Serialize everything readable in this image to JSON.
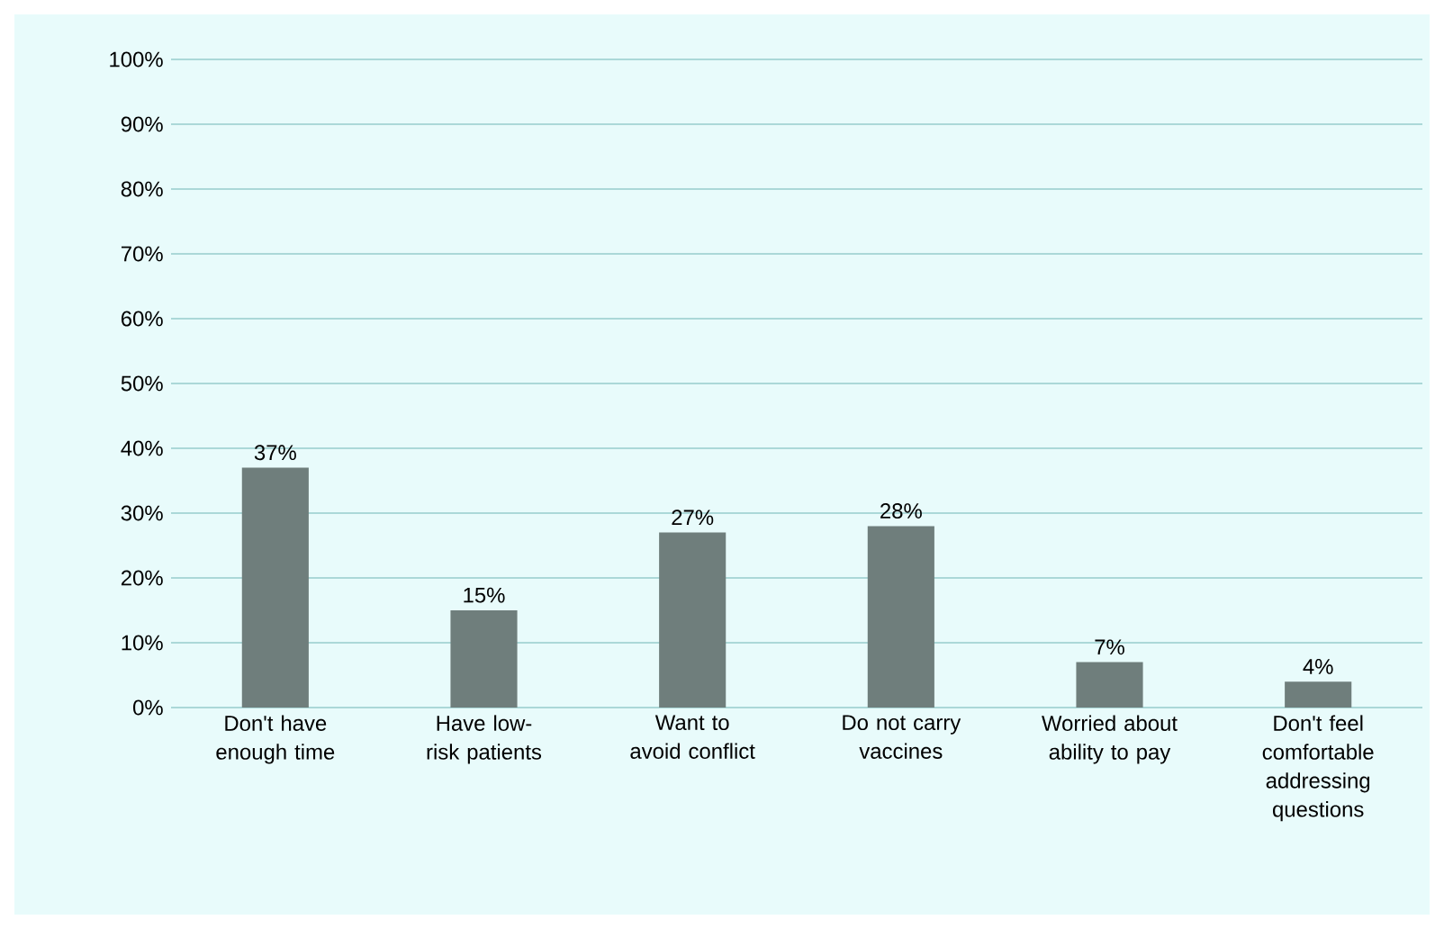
{
  "chart_data": {
    "type": "bar",
    "categories": [
      "Don't have enough time",
      "Have low-risk patients",
      "Want to avoid conflict",
      "Do not carry vaccines",
      "Worried about ability to pay",
      "Don't feel comfortable addressing questions"
    ],
    "values": [
      37,
      15,
      27,
      28,
      7,
      4
    ],
    "value_labels": [
      "37%",
      "15%",
      "27%",
      "28%",
      "7%",
      "4%"
    ],
    "color": "#6f7e7c",
    "ylim": [
      0,
      100
    ],
    "yticks": [
      {
        "value": 0,
        "label": "0%"
      },
      {
        "value": 10,
        "label": "10%"
      },
      {
        "value": 20,
        "label": "20%"
      },
      {
        "value": 30,
        "label": "30%"
      },
      {
        "value": 40,
        "label": "40%"
      },
      {
        "value": 50,
        "label": "50%"
      },
      {
        "value": 60,
        "label": "60%"
      },
      {
        "value": 70,
        "label": "70%"
      },
      {
        "value": 80,
        "label": "80%"
      },
      {
        "value": 90,
        "label": "90%"
      },
      {
        "value": 100,
        "label": "100%"
      }
    ],
    "grid": "y"
  }
}
